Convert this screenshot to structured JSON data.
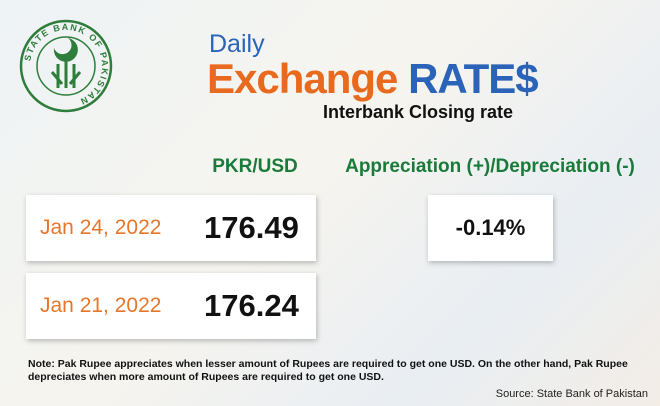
{
  "logo": {
    "text": "STATE BANK OF PAKISTAN"
  },
  "header": {
    "daily": "Daily",
    "title_main": "Exchange",
    "title_accent": "RATE$",
    "subtitle": "Interbank Closing rate"
  },
  "columns": [
    "PKR/USD",
    "Appreciation (+)/Depreciation (-)"
  ],
  "rows": [
    {
      "date": "Jan 24, 2022",
      "rate": "176.49"
    },
    {
      "date": "Jan 21, 2022",
      "rate": "176.24"
    }
  ],
  "change": "-0.14%",
  "note": "Note: Pak Rupee appreciates when lesser amount of Rupees are required to get one USD. On the other hand, Pak Rupee depreciates when more amount of Rupees are required to get one USD.",
  "source": "Source: State Bank of Pakistan"
}
